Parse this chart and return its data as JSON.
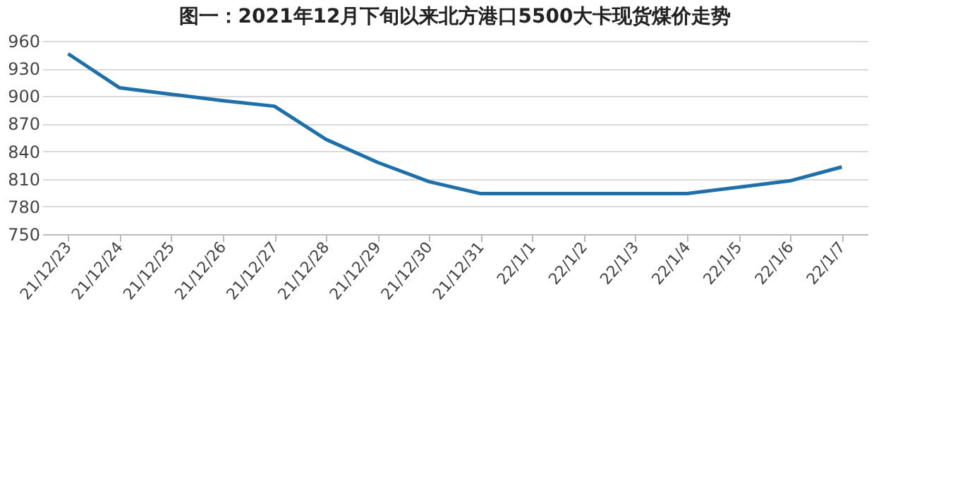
{
  "chart_data": {
    "type": "line",
    "title": "图一：2021年12月下旬以来北方港口5500大卡现货煤价走势",
    "categories": [
      "21/12/23",
      "21/12/24",
      "21/12/25",
      "21/12/26",
      "21/12/27",
      "21/12/28",
      "21/12/29",
      "21/12/30",
      "21/12/31",
      "22/1/1",
      "22/1/2",
      "22/1/3",
      "22/1/4",
      "22/1/5",
      "22/1/6",
      "22/1/7"
    ],
    "series": [
      {
        "color": "#1f6fa8",
        "values": [
          946,
          909,
          902,
          895,
          889,
          853,
          828,
          807,
          794,
          794,
          794,
          794,
          794,
          801,
          808,
          823
        ]
      }
    ],
    "ylim": [
      750,
      960
    ],
    "yticks": [
      750,
      780,
      810,
      840,
      870,
      900,
      930,
      960
    ],
    "grid": "y",
    "legend": false,
    "marker": "none",
    "line_style": "solid"
  }
}
